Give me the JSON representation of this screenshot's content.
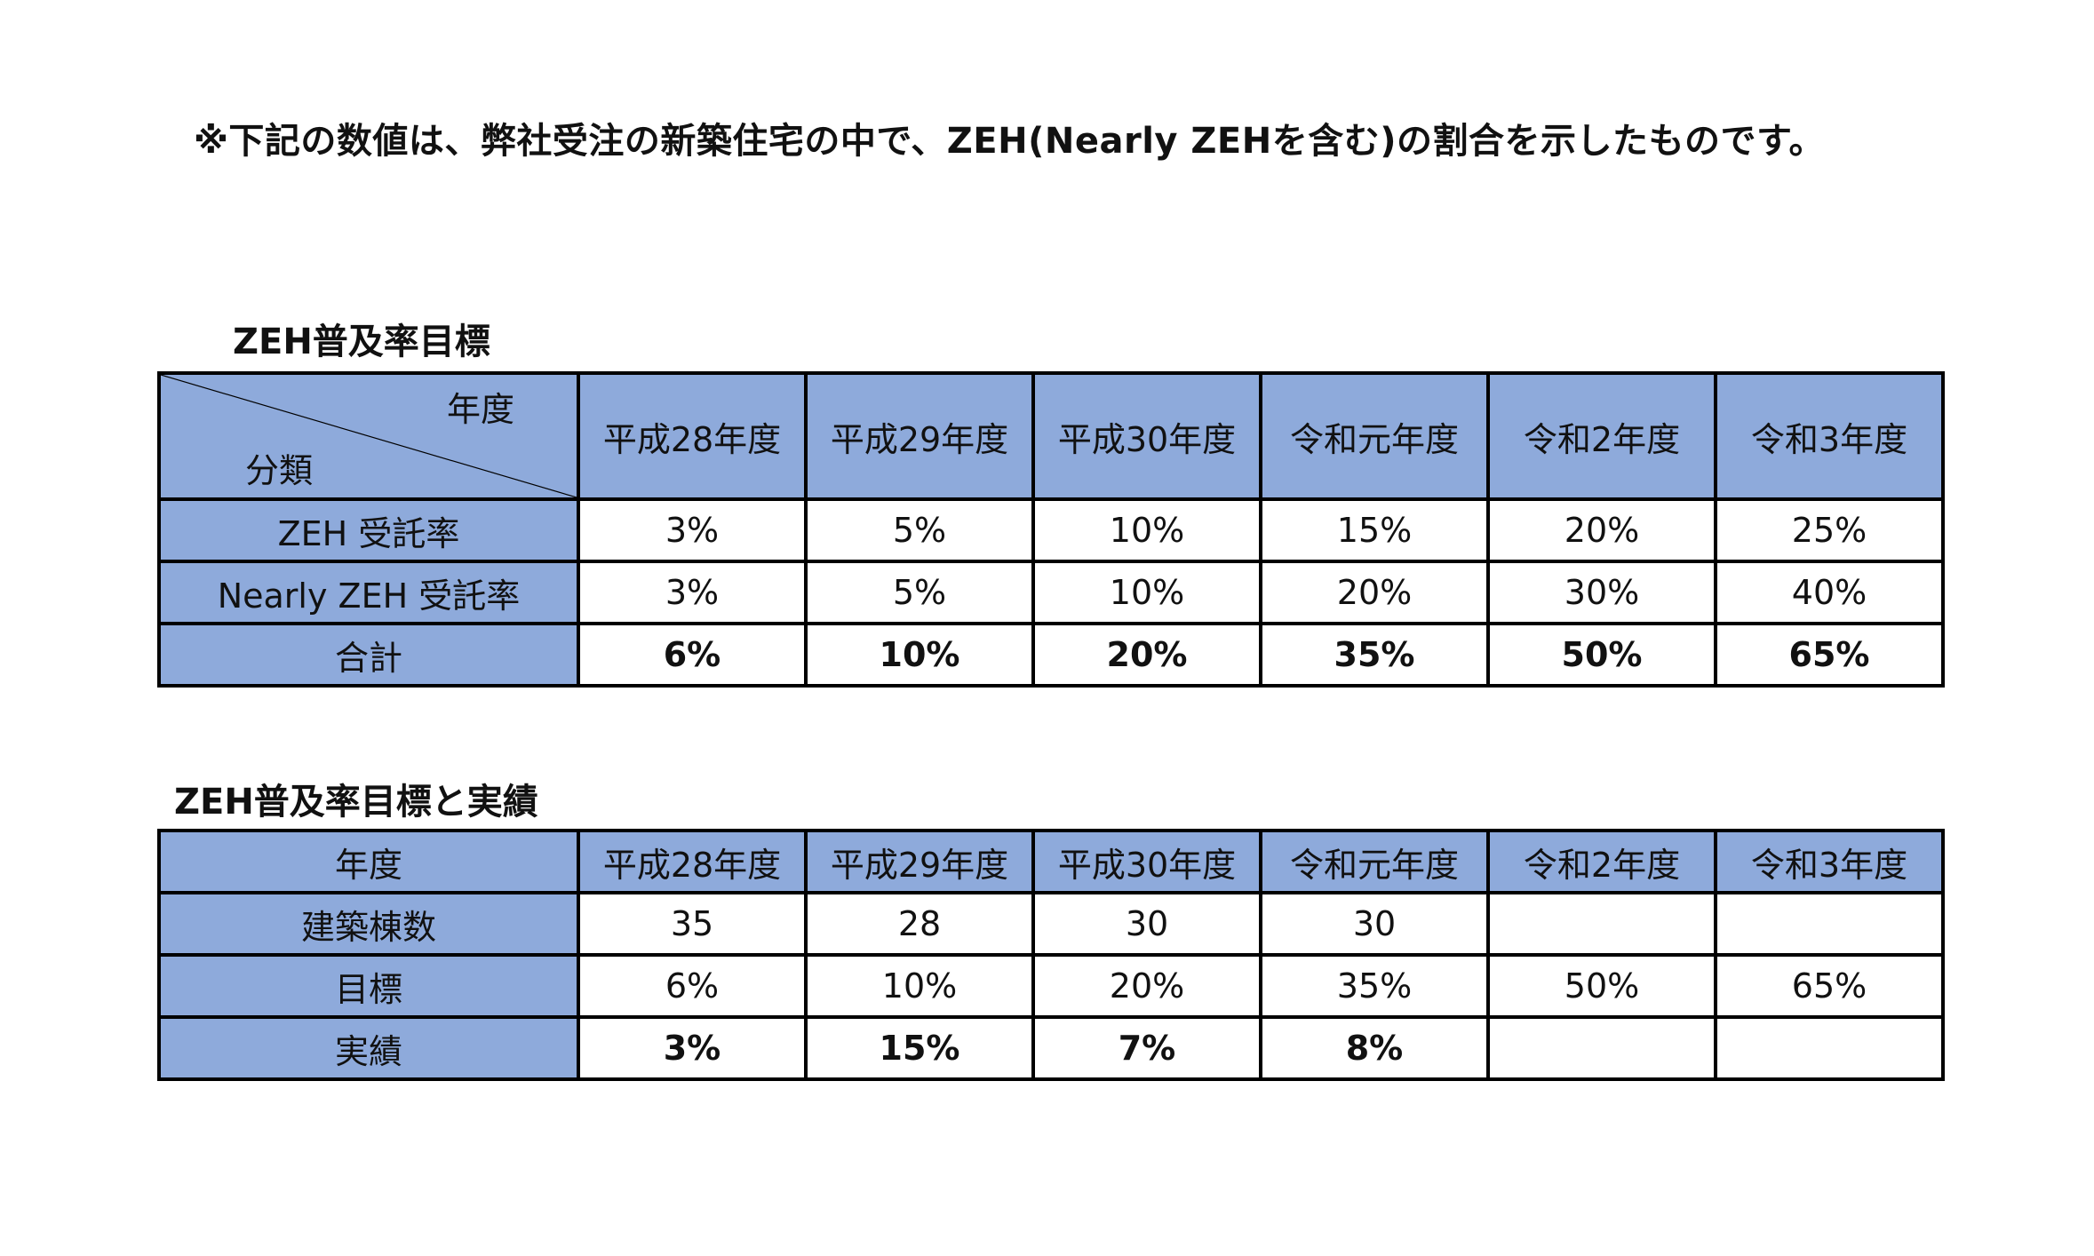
{
  "note": "※下記の数値は、弊社受注の新築住宅の中で、ZEH(Nearly ZEHを含む)の割合を示したものです。",
  "table1": {
    "title": "ZEH普及率目標",
    "corner_top": "年度",
    "corner_bottom": "分類",
    "years": [
      "平成28年度",
      "平成29年度",
      "平成30年度",
      "令和元年度",
      "令和2年度",
      "令和3年度"
    ],
    "rows": [
      {
        "label": "ZEH 受託率",
        "values": [
          "3%",
          "5%",
          "10%",
          "15%",
          "20%",
          "25%"
        ]
      },
      {
        "label": "Nearly ZEH 受託率",
        "values": [
          "3%",
          "5%",
          "10%",
          "20%",
          "30%",
          "40%"
        ]
      },
      {
        "label": "合計",
        "values": [
          "6%",
          "10%",
          "20%",
          "35%",
          "50%",
          "65%"
        ]
      }
    ]
  },
  "table2": {
    "title": "ZEH普及率目標と実績",
    "header_label": "年度",
    "years": [
      "平成28年度",
      "平成29年度",
      "平成30年度",
      "令和元年度",
      "令和2年度",
      "令和3年度"
    ],
    "rows": [
      {
        "label": "建築棟数",
        "values": [
          "35",
          "28",
          "30",
          "30",
          "",
          ""
        ]
      },
      {
        "label": "目標",
        "values": [
          "6%",
          "10%",
          "20%",
          "35%",
          "50%",
          "65%"
        ]
      },
      {
        "label": "実績",
        "values": [
          "3%",
          "15%",
          "7%",
          "8%",
          "",
          ""
        ]
      }
    ]
  },
  "colors": {
    "header_fill": "#8eaadb",
    "border": "#000000",
    "background": "#ffffff"
  }
}
